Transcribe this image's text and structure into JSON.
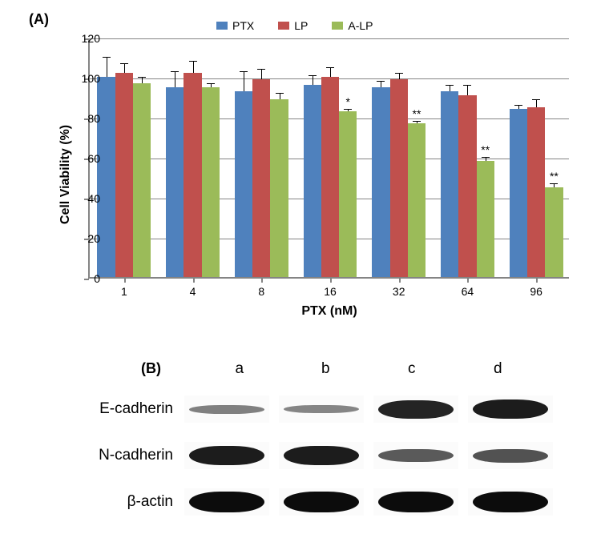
{
  "panelA": {
    "label": "(A)",
    "chart": {
      "type": "bar",
      "background_color": "#ffffff",
      "grid_color": "#848484",
      "axis_color": "#848484",
      "ylabel": "Cell Viability (%)",
      "xlabel": "PTX (nM)",
      "ylim": [
        0,
        120
      ],
      "ytick_step": 20,
      "yticks": [
        0,
        20,
        40,
        60,
        80,
        100,
        120
      ],
      "label_fontsize": 16,
      "tick_fontsize": 14,
      "bar_width_rel": 0.26,
      "categories": [
        "1",
        "4",
        "8",
        "16",
        "32",
        "64",
        "96"
      ],
      "series": [
        {
          "name": "PTX",
          "color": "#4f81bd"
        },
        {
          "name": "LP",
          "color": "#c0504d"
        },
        {
          "name": "A-LP",
          "color": "#9bbb59"
        }
      ],
      "data": {
        "PTX": {
          "values": [
            100,
            95,
            93,
            96,
            95,
            93,
            84
          ],
          "errors": [
            10,
            8,
            10,
            5,
            3,
            3,
            2
          ]
        },
        "LP": {
          "values": [
            102,
            102,
            99,
            100,
            99,
            91,
            85
          ],
          "errors": [
            5,
            6,
            5,
            5,
            3,
            5,
            4
          ]
        },
        "A-LP": {
          "values": [
            97,
            95,
            89,
            83,
            77,
            58,
            45
          ],
          "errors": [
            3,
            2,
            3,
            1,
            1,
            2,
            2
          ]
        }
      },
      "significance": {
        "series": "A-LP",
        "marks": {
          "16": "*",
          "32": "**",
          "64": "**",
          "96": "**"
        }
      }
    }
  },
  "panelB": {
    "label": "(B)",
    "columns": [
      "a",
      "b",
      "c",
      "d"
    ],
    "rows": [
      {
        "label": "E-cadherin",
        "intensity": [
          0.25,
          0.22,
          0.85,
          0.9
        ]
      },
      {
        "label": "N-cadherin",
        "intensity": [
          0.9,
          0.9,
          0.5,
          0.55
        ]
      },
      {
        "label": "β-actin",
        "intensity": [
          1.0,
          1.0,
          1.0,
          1.0
        ]
      }
    ],
    "band_color": "#0c0c0c",
    "lane_bg": "#fbfbfb"
  }
}
